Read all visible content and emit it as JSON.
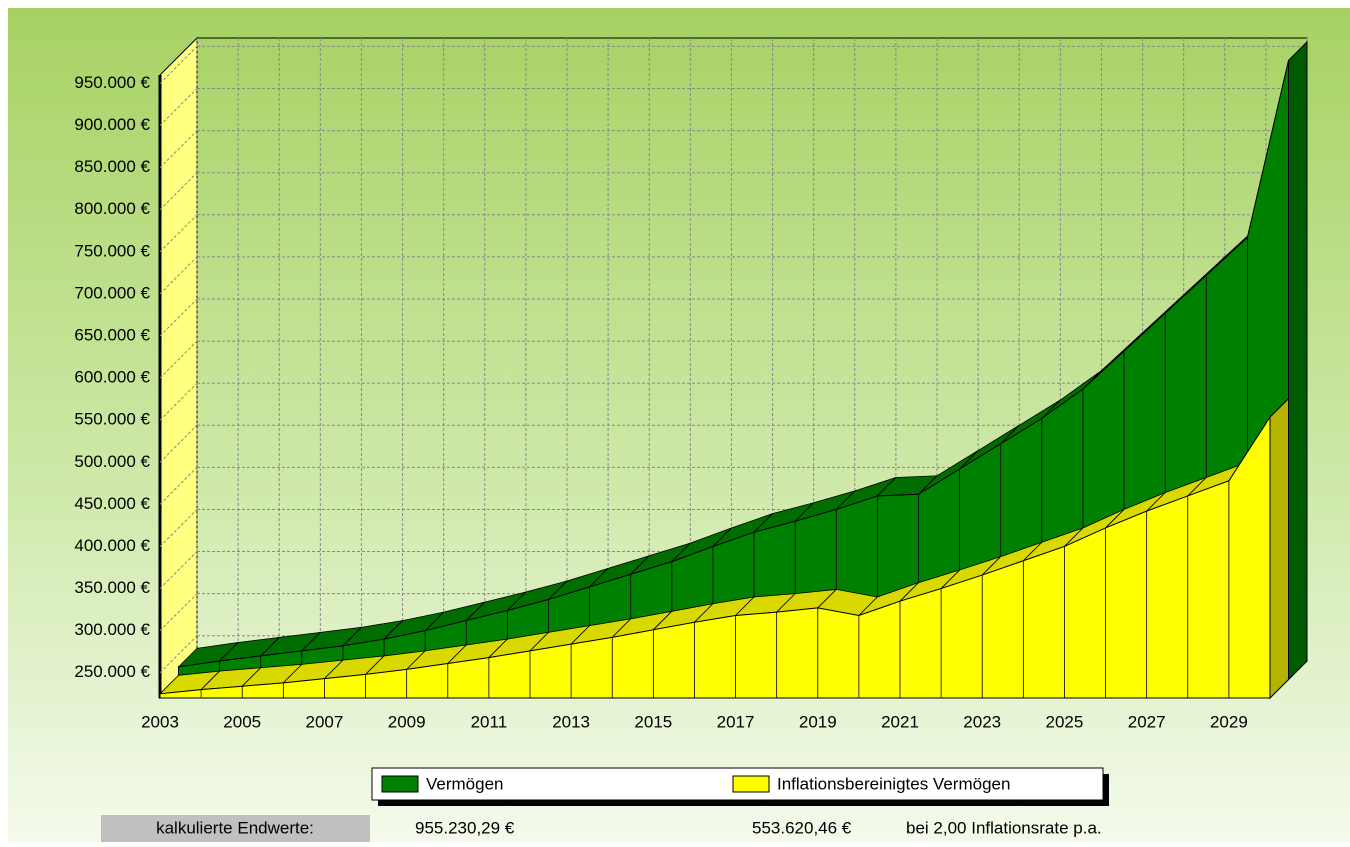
{
  "chart_data": {
    "type": "area3d",
    "x": [
      2003,
      2004,
      2005,
      2006,
      2007,
      2008,
      2009,
      2010,
      2011,
      2012,
      2013,
      2014,
      2015,
      2016,
      2017,
      2018,
      2019,
      2020,
      2021,
      2022,
      2023,
      2024,
      2025,
      2026,
      2027,
      2028,
      2029,
      2030
    ],
    "xlim": [
      2003,
      2030
    ],
    "xticks": [
      2003,
      2005,
      2007,
      2009,
      2011,
      2013,
      2015,
      2017,
      2019,
      2021,
      2023,
      2025,
      2027,
      2029
    ],
    "ylim": [
      220000,
      960000
    ],
    "yticks": [
      {
        "value": 250000,
        "label": "250.000 €"
      },
      {
        "value": 300000,
        "label": "300.000 €"
      },
      {
        "value": 350000,
        "label": "350.000 €"
      },
      {
        "value": 400000,
        "label": "400.000 €"
      },
      {
        "value": 450000,
        "label": "450.000 €"
      },
      {
        "value": 500000,
        "label": "500.000 €"
      },
      {
        "value": 550000,
        "label": "550.000 €"
      },
      {
        "value": 600000,
        "label": "600.000 €"
      },
      {
        "value": 650000,
        "label": "650.000 €"
      },
      {
        "value": 700000,
        "label": "700.000 €"
      },
      {
        "value": 750000,
        "label": "750.000 €"
      },
      {
        "value": 800000,
        "label": "800.000 €"
      },
      {
        "value": 850000,
        "label": "850.000 €"
      },
      {
        "value": 900000,
        "label": "900.000 €"
      },
      {
        "value": 950000,
        "label": "950.000 €"
      }
    ],
    "grid": true,
    "series": [
      {
        "name": "Vermögen",
        "color": "#008000",
        "values": [
          235000,
          242000,
          248000,
          254000,
          260000,
          268000,
          278000,
          290000,
          302000,
          315000,
          330000,
          345000,
          360000,
          378000,
          395000,
          408000,
          422000,
          438000,
          440000,
          470000,
          500000,
          530000,
          565000,
          610000,
          655000,
          700000,
          745000,
          955230.29
        ]
      },
      {
        "name": "Inflationsbereinigtes Vermögen",
        "color": "#ffff00",
        "values": [
          225000,
          230000,
          234000,
          238000,
          243000,
          248000,
          254000,
          261000,
          268000,
          276000,
          284000,
          292000,
          301000,
          310000,
          318000,
          322000,
          327000,
          318000,
          335000,
          350000,
          366000,
          383000,
          400000,
          422000,
          442000,
          460000,
          478000,
          553620.46
        ]
      }
    ],
    "summary": {
      "label": "kalkulierte Endwerte:",
      "value_1": "955.230,29 €",
      "value_2": "553.620,46 €",
      "note": "bei 2,00 Inflationsrate p.a."
    }
  }
}
